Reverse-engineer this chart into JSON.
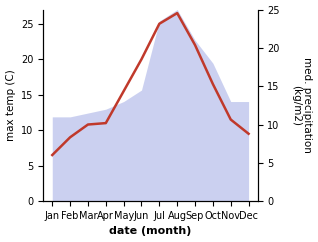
{
  "months": [
    "Jan",
    "Feb",
    "Mar",
    "Apr",
    "May",
    "Jun",
    "Jul",
    "Aug",
    "Sep",
    "Oct",
    "Nov",
    "Dec"
  ],
  "month_indices": [
    1,
    2,
    3,
    4,
    5,
    6,
    7,
    8,
    9,
    10,
    11,
    12
  ],
  "max_temp": [
    6.5,
    9.0,
    10.8,
    11.0,
    15.5,
    20.0,
    25.0,
    26.5,
    22.0,
    16.5,
    11.5,
    9.5
  ],
  "precipitation": [
    11.0,
    11.0,
    11.5,
    12.0,
    13.0,
    14.5,
    23.5,
    25.0,
    21.0,
    18.0,
    13.0,
    13.0
  ],
  "temp_color": "#c0392b",
  "precip_fill_color": "#b0b8e8",
  "fill_alpha": 0.65,
  "temp_ylim": [
    0,
    27
  ],
  "precip_ylim": [
    0,
    25
  ],
  "temp_yticks": [
    0,
    5,
    10,
    15,
    20,
    25
  ],
  "precip_yticks": [
    0,
    5,
    10,
    15,
    20,
    25
  ],
  "ylabel_left": "max temp (C)",
  "ylabel_right": "med. precipitation\n(kg/m2)",
  "xlabel": "date (month)",
  "bg_color": "#ffffff",
  "line_width": 1.8,
  "xlabel_fontsize": 8,
  "ylabel_fontsize": 7.5,
  "tick_fontsize": 7,
  "xlim": [
    0.5,
    12.5
  ]
}
